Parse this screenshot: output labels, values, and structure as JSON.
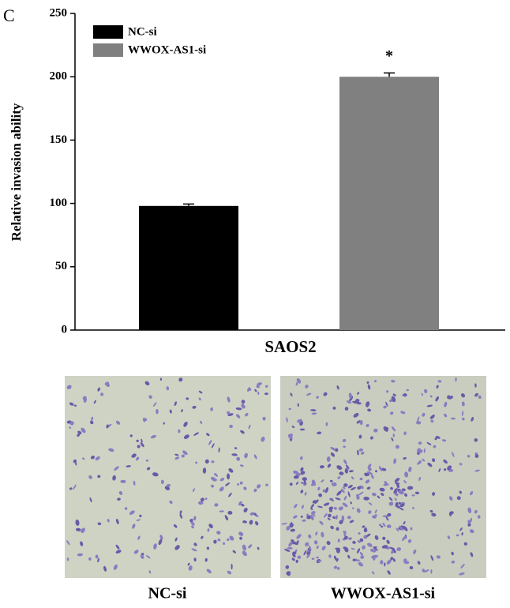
{
  "chart_data": {
    "type": "bar",
    "panel_label": "C",
    "ylabel": "Relative invasion ability",
    "categories": [
      "SAOS2"
    ],
    "series": [
      {
        "name": "NC-si",
        "color": "#000000",
        "values": [
          98
        ],
        "errors": [
          1.5
        ]
      },
      {
        "name": "WWOX-AS1-si",
        "color": "#808080",
        "values": [
          200
        ],
        "errors": [
          3
        ]
      }
    ],
    "annotation": "*",
    "ylim": [
      0,
      250
    ],
    "yticks": [
      0,
      50,
      100,
      150,
      200,
      250
    ],
    "legend": "upper left"
  }
}
